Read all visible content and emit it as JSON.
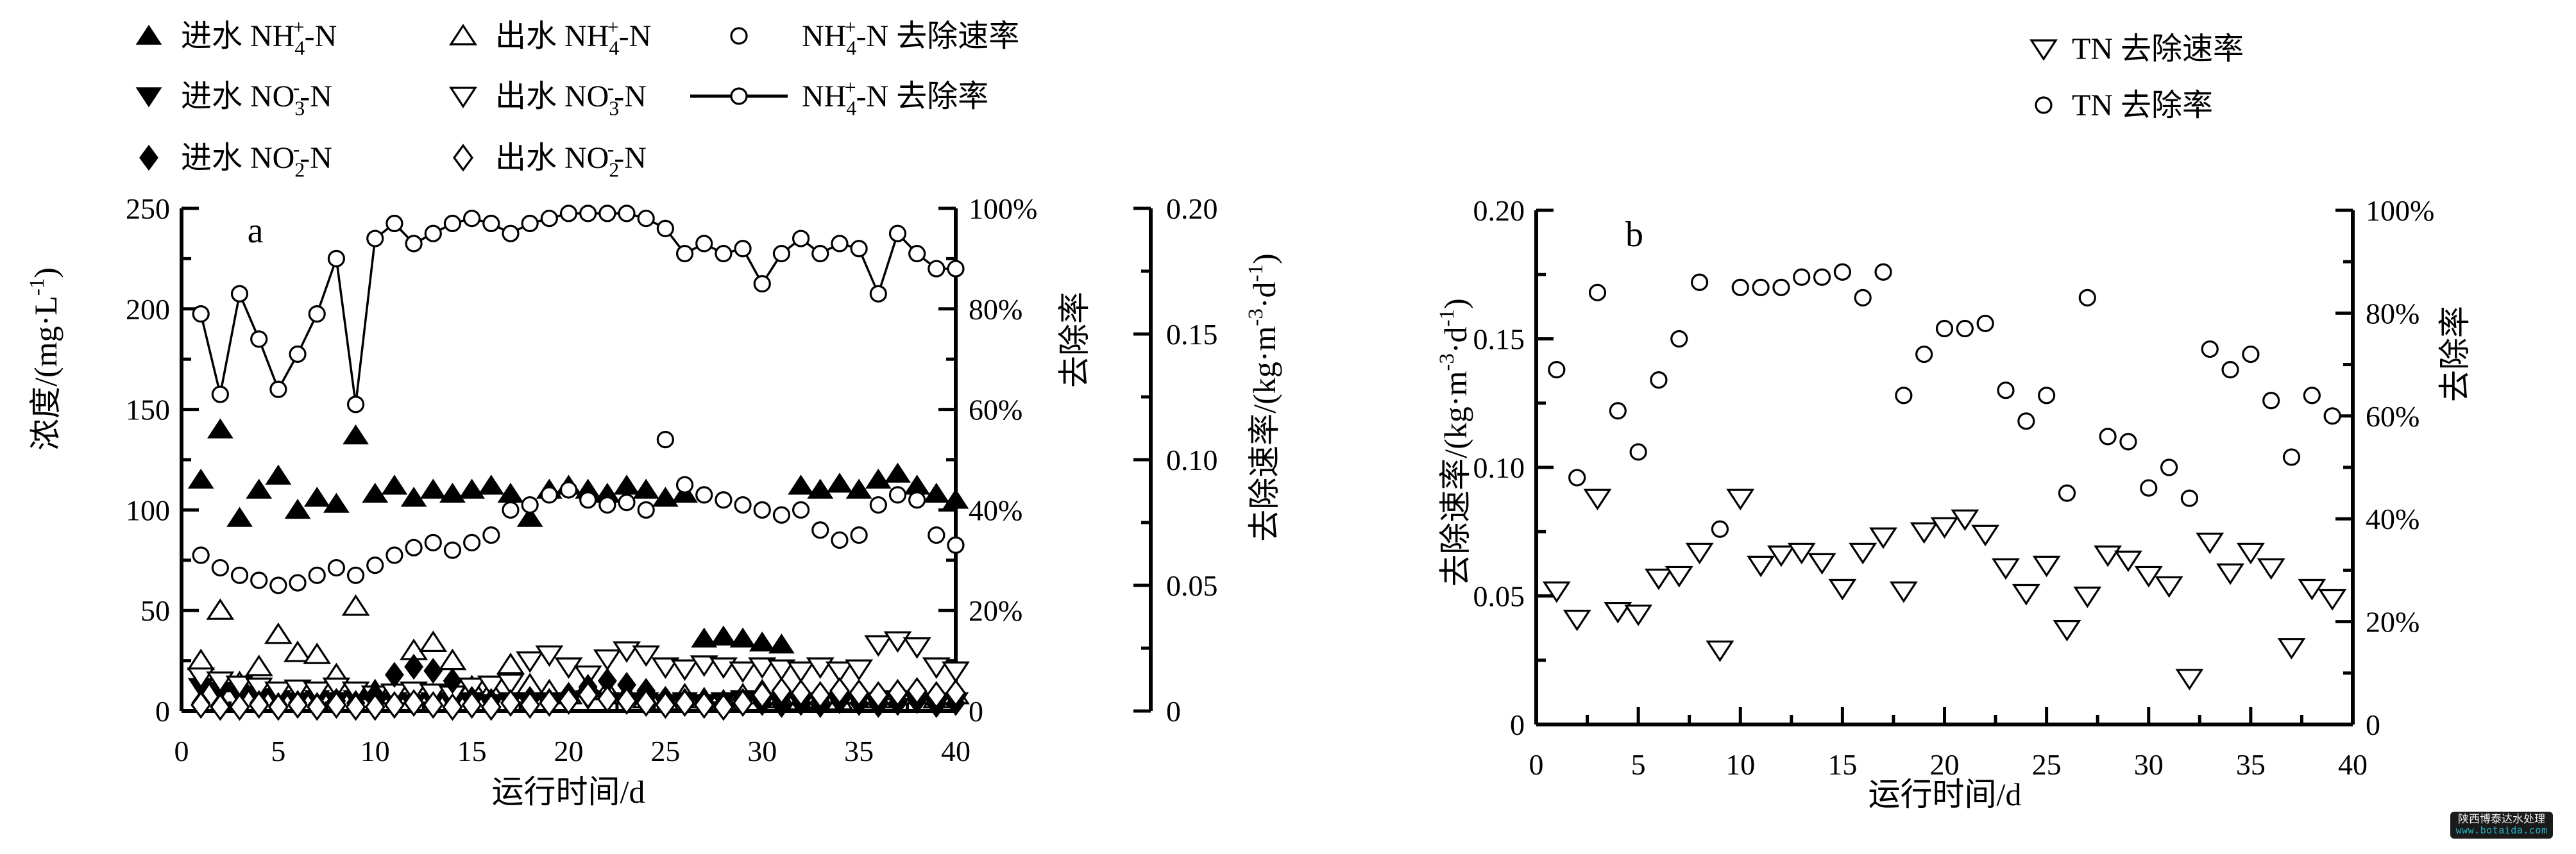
{
  "watermark": {
    "company": "陕西博泰达水处理",
    "website": "www.botaida.com",
    "bg_color": "#1a1a1a",
    "company_color": "#f2f2f2",
    "website_color": "#25b6c8"
  },
  "chart_data": [
    {
      "id": "a",
      "panel_label": "a",
      "type": "scatter",
      "xlabel": "运行时间/d",
      "x_range": [
        0,
        40
      ],
      "x_major_step": 5,
      "x_minor_step": 2.5,
      "x_ticks": [
        "0",
        "5",
        "10",
        "15",
        "20",
        "25",
        "30",
        "35",
        "40"
      ],
      "axes": {
        "left": {
          "title": "浓度/(mg·L⁻¹)",
          "range": [
            0,
            250
          ],
          "major_step": 50,
          "minor_step": 25,
          "tick_labels": [
            "0",
            "50",
            "100",
            "150",
            "200",
            "250"
          ]
        },
        "right_percent": {
          "title": "去除率",
          "range": [
            0,
            100
          ],
          "major_step": 20,
          "minor_step": 10,
          "tick_labels": [
            "0",
            "20%",
            "40%",
            "60%",
            "80%",
            "100%"
          ]
        },
        "right_rate": {
          "title": "去除速率/(kg·m⁻³·d⁻¹)",
          "range": [
            0,
            0.2
          ],
          "major_step": 0.05,
          "minor_step": 0.025,
          "tick_labels": [
            "0",
            "0.05",
            "0.10",
            "0.15",
            "0.20"
          ]
        }
      },
      "days": [
        1,
        2,
        3,
        4,
        5,
        6,
        7,
        8,
        9,
        10,
        11,
        12,
        13,
        14,
        15,
        16,
        17,
        18,
        19,
        20,
        21,
        22,
        23,
        24,
        25,
        26,
        27,
        28,
        29,
        30,
        31,
        32,
        33,
        34,
        35,
        36,
        37,
        38,
        39,
        40
      ],
      "series": [
        {
          "key": "inlet-nh4",
          "label": "进水 NH₄⁺-N",
          "marker": "triangle-up-filled",
          "axis": "left",
          "values": [
            115,
            140,
            96,
            110,
            117,
            100,
            106,
            103,
            137,
            108,
            112,
            106,
            110,
            108,
            110,
            112,
            108,
            96,
            110,
            112,
            110,
            108,
            112,
            110,
            106,
            108,
            36,
            37,
            36,
            34,
            33,
            112,
            110,
            113,
            110,
            115,
            118,
            112,
            108,
            105
          ]
        },
        {
          "key": "outlet-nh4",
          "label": "出水 NH₄⁺-N",
          "marker": "triangle-up-open",
          "axis": "left",
          "values": [
            25,
            50,
            14,
            22,
            38,
            29,
            28,
            18,
            52,
            10,
            8,
            30,
            34,
            25,
            12,
            10,
            23,
            13,
            10,
            8,
            12,
            10,
            8,
            6,
            5,
            8,
            6,
            5,
            8,
            10,
            6,
            5,
            6,
            5,
            8,
            6,
            10,
            8,
            6,
            8
          ]
        },
        {
          "key": "inlet-no3",
          "label": "进水 NO₃⁻-N",
          "marker": "triangle-down-filled",
          "axis": "left",
          "values": [
            12,
            10,
            8,
            7,
            6,
            5,
            6,
            5,
            6,
            4,
            5,
            4,
            5,
            4,
            5,
            4,
            5,
            4,
            5,
            4,
            6,
            5,
            4,
            5,
            4,
            5,
            4,
            5,
            6,
            4,
            5,
            4,
            5,
            4,
            5,
            4,
            6,
            5,
            4,
            5
          ]
        },
        {
          "key": "outlet-no3",
          "label": "出水 NO₃⁻-N",
          "marker": "triangle-down-open",
          "axis": "left",
          "values": [
            17,
            15,
            13,
            12,
            10,
            11,
            10,
            12,
            10,
            8,
            9,
            10,
            9,
            8,
            12,
            13,
            14,
            25,
            28,
            22,
            18,
            26,
            30,
            28,
            22,
            21,
            23,
            22,
            20,
            22,
            21,
            20,
            22,
            20,
            21,
            33,
            35,
            32,
            22,
            20
          ]
        },
        {
          "key": "inlet-no2",
          "label": "进水 NO₂⁻-N",
          "marker": "diamond-filled",
          "axis": "left",
          "values": [
            4,
            3,
            2,
            4,
            3,
            4,
            3,
            5,
            4,
            8,
            18,
            22,
            20,
            15,
            6,
            5,
            4,
            6,
            5,
            8,
            12,
            15,
            13,
            10,
            6,
            5,
            4,
            3,
            5,
            4,
            3,
            4,
            3,
            5,
            4,
            3,
            4,
            5,
            3,
            4
          ]
        },
        {
          "key": "outlet-no2",
          "label": "出水 NO₂⁻-N",
          "marker": "diamond-open",
          "axis": "left",
          "values": [
            3,
            2,
            2,
            3,
            2,
            3,
            2,
            3,
            2,
            2,
            3,
            4,
            3,
            2,
            3,
            2,
            4,
            3,
            4,
            5,
            8,
            6,
            5,
            4,
            3,
            4,
            3,
            2,
            4,
            8,
            10,
            9,
            8,
            10,
            9,
            8,
            9,
            10,
            8,
            9
          ]
        },
        {
          "key": "nh4-removal-rate",
          "label": "NH₄⁺-N 去除速率",
          "marker": "circle-open",
          "axis": "right_rate",
          "values": [
            0.062,
            0.057,
            0.054,
            0.052,
            0.05,
            0.051,
            0.054,
            0.057,
            0.054,
            0.058,
            0.062,
            0.065,
            0.067,
            0.064,
            0.067,
            0.07,
            0.08,
            0.082,
            0.086,
            0.088,
            0.084,
            0.082,
            0.083,
            0.08,
            0.108,
            0.09,
            0.086,
            0.084,
            0.082,
            0.08,
            0.078,
            0.08,
            0.072,
            0.068,
            0.07,
            0.082,
            0.086,
            0.084,
            0.07,
            0.066
          ]
        },
        {
          "key": "nh4-removal-pct",
          "label": "NH₄⁺-N 去除率",
          "marker": "circle-line",
          "axis": "right_percent",
          "line": true,
          "values": [
            79,
            63,
            83,
            74,
            64,
            71,
            79,
            90,
            61,
            94,
            97,
            93,
            95,
            97,
            98,
            97,
            95,
            97,
            98,
            99,
            99,
            99,
            99,
            98,
            96,
            91,
            93,
            91,
            92,
            85,
            91,
            94,
            91,
            93,
            92,
            83,
            95,
            91,
            88,
            88
          ]
        }
      ]
    },
    {
      "id": "b",
      "panel_label": "b",
      "type": "scatter",
      "xlabel": "运行时间/d",
      "x_range": [
        0,
        40
      ],
      "x_major_step": 5,
      "x_minor_step": 2.5,
      "x_ticks": [
        "0",
        "5",
        "10",
        "15",
        "20",
        "25",
        "30",
        "35",
        "40"
      ],
      "axes": {
        "left": {
          "title": "去除速率/(kg·m⁻³·d⁻¹)",
          "range": [
            0,
            0.2
          ],
          "major_step": 0.05,
          "minor_step": 0.025,
          "tick_labels": [
            "0",
            "0.05",
            "0.10",
            "0.15",
            "0.20"
          ]
        },
        "right_percent": {
          "title": "去除率",
          "range": [
            0,
            100
          ],
          "major_step": 20,
          "minor_step": 10,
          "tick_labels": [
            "0",
            "20%",
            "40%",
            "60%",
            "80%",
            "100%"
          ]
        }
      },
      "days": [
        1,
        2,
        3,
        4,
        5,
        6,
        7,
        8,
        9,
        10,
        11,
        12,
        13,
        14,
        15,
        16,
        17,
        18,
        19,
        20,
        21,
        22,
        23,
        24,
        25,
        26,
        27,
        28,
        29,
        30,
        31,
        32,
        33,
        34,
        35,
        36,
        37,
        38,
        39
      ],
      "series": [
        {
          "key": "tn-removal-rate",
          "label": "TN 去除速率",
          "marker": "triangle-down-open",
          "axis": "left",
          "values": [
            0.052,
            0.041,
            0.088,
            0.044,
            0.043,
            0.057,
            0.058,
            0.067,
            0.029,
            0.088,
            0.062,
            0.066,
            0.067,
            0.063,
            0.053,
            0.067,
            0.073,
            0.052,
            0.075,
            0.077,
            0.08,
            0.074,
            0.061,
            0.051,
            0.062,
            0.037,
            0.05,
            0.066,
            0.064,
            0.058,
            0.054,
            0.018,
            0.071,
            0.059,
            0.067,
            0.061,
            0.03,
            0.053,
            0.049
          ]
        },
        {
          "key": "tn-removal-pct",
          "label": "TN 去除率",
          "marker": "circle-open",
          "axis": "right_percent",
          "values": [
            69,
            48,
            84,
            61,
            53,
            67,
            75,
            86,
            38,
            85,
            85,
            85,
            87,
            87,
            88,
            83,
            88,
            64,
            72,
            77,
            77,
            78,
            65,
            59,
            64,
            45,
            83,
            56,
            55,
            46,
            50,
            44,
            73,
            69,
            72,
            63,
            52,
            64,
            60
          ]
        }
      ]
    }
  ]
}
